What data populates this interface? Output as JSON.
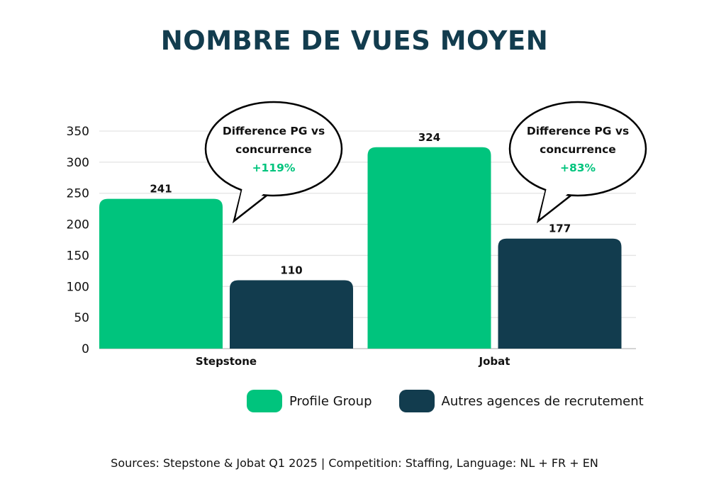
{
  "chart_data": {
    "type": "bar",
    "title": "NOMBRE DE VUES MOYEN",
    "categories": [
      "Stepstone",
      "Jobat"
    ],
    "series": [
      {
        "name": "Profile Group",
        "values": [
          241,
          324
        ],
        "color": "#00c47d"
      },
      {
        "name": "Autres agences de recrutement",
        "values": [
          110,
          177
        ],
        "color": "#123c4e"
      }
    ],
    "ylim": [
      0,
      350
    ],
    "yticks": [
      0,
      50,
      100,
      150,
      200,
      250,
      300,
      350
    ],
    "grid": true,
    "legend": "bottom-right",
    "annotations": [
      {
        "category": "Stepstone",
        "line1": "Difference PG vs",
        "line2": "concurrence",
        "value": "+119%"
      },
      {
        "category": "Jobat",
        "line1": "Difference PG vs",
        "line2": "concurrence",
        "value": "+83%"
      }
    ]
  },
  "source": "Sources: Stepstone & Jobat Q1 2025 | Competition: Staffing, Language: NL + FR + EN",
  "colors": {
    "accent": "#00c47d",
    "dark": "#123c4e"
  }
}
